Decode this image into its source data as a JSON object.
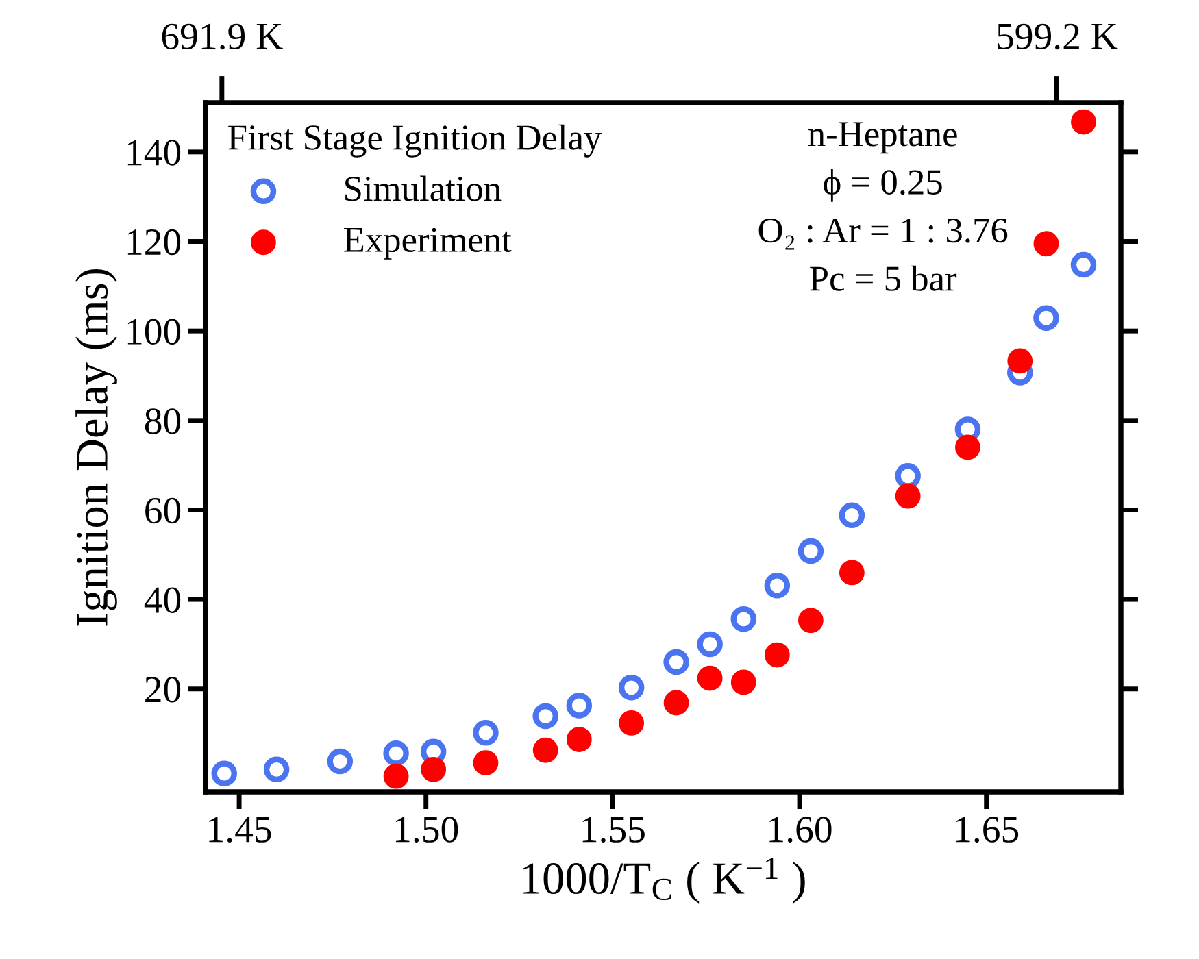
{
  "chart_data": {
    "type": "scatter",
    "xlabel": "1000/T$_{C}$ ( K$^{−1}$ )",
    "ylabel": "Ignition Delay (ms)",
    "legend_title": "First Stage Ignition Delay",
    "legend": "top left",
    "marker": "circle",
    "grid": false,
    "xlim": [
      1.441,
      1.686
    ],
    "xticks": [
      {
        "value": 1.45,
        "label": "1.45"
      },
      {
        "value": 1.5,
        "label": "1.50"
      },
      {
        "value": 1.55,
        "label": "1.55"
      },
      {
        "value": 1.6,
        "label": "1.60"
      },
      {
        "value": 1.65,
        "label": "1.65"
      }
    ],
    "x2lim": [
      694.0,
      593.1
    ],
    "x2ticks": [
      {
        "value": 691.9,
        "label": "691.9 K"
      },
      {
        "value": 599.2,
        "label": "599.2 K"
      }
    ],
    "ylim": [
      -3,
      151
    ],
    "yticks": [
      20,
      40,
      60,
      80,
      100,
      120,
      140
    ],
    "annotations": [
      "n-Heptane",
      "ϕ = 0.25",
      "O₂ : Ar = 1 : 3.76",
      "Pc = 5 bar"
    ],
    "series": [
      {
        "name": "Simulation",
        "color": "#4a74f0",
        "x": [
          1.446,
          1.46,
          1.477,
          1.492,
          1.502,
          1.516,
          1.532,
          1.541,
          1.555,
          1.567,
          1.576,
          1.585,
          1.594,
          1.603,
          1.614,
          1.629,
          1.645,
          1.659,
          1.666,
          1.676
        ],
        "values": [
          1.1,
          2.0,
          3.8,
          5.6,
          6.0,
          10.2,
          13.9,
          16.3,
          20.3,
          26.0,
          30.0,
          35.6,
          43.1,
          50.8,
          58.8,
          67.6,
          78.0,
          90.7,
          102.9,
          114.8
        ]
      },
      {
        "name": "Experiment",
        "color": "#ff0000",
        "x": [
          1.492,
          1.502,
          1.516,
          1.532,
          1.541,
          1.555,
          1.567,
          1.576,
          1.585,
          1.594,
          1.603,
          1.614,
          1.629,
          1.645,
          1.659,
          1.666,
          1.676
        ],
        "values": [
          0.5,
          2.0,
          3.5,
          6.3,
          8.7,
          12.4,
          16.9,
          22.4,
          21.5,
          27.6,
          35.3,
          46.0,
          63.1,
          74.0,
          93.3,
          119.5,
          146.7
        ]
      }
    ]
  }
}
